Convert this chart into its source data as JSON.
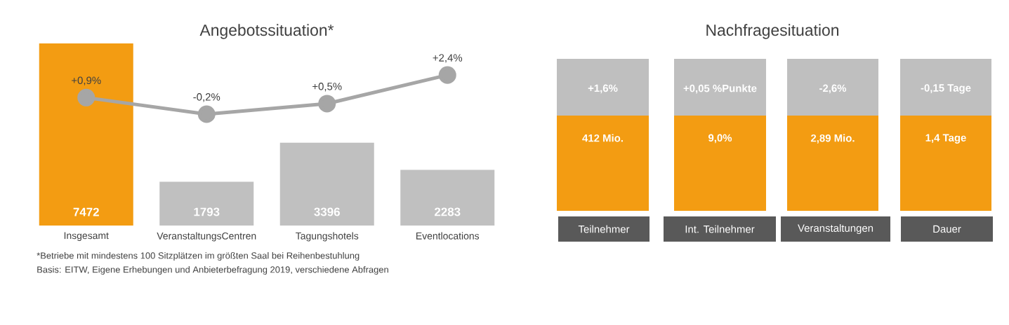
{
  "chart_data": [
    {
      "type": "bar",
      "title": "Angebotssituation*",
      "categories": [
        "Insgesamt",
        "VeranstaltungsCentren",
        "Tagungshotels",
        "Eventlocations"
      ],
      "series": [
        {
          "type": "bar",
          "colors": [
            "#f39c12",
            "#c0c0c0",
            "#c0c0c0",
            "#c0c0c0"
          ],
          "values": [
            7472,
            1793,
            3396,
            2283
          ],
          "value_labels": [
            "7472",
            "1793",
            "3396",
            "2283"
          ]
        },
        {
          "type": "line",
          "axis": "y2",
          "color": "#a6a6a6",
          "marker": "circle",
          "values": [
            0.9,
            -0.2,
            0.5,
            2.4
          ],
          "value_labels": [
            "+0,9%",
            "-0,2%",
            "+0,5%",
            "+2,4%"
          ]
        }
      ],
      "y2lim": [
        -7.6,
        4.5
      ],
      "annotations": [
        "*Betriebe mit mindestens 100 Sitzplätzen im größten Saal bei Reihenbestuhlung",
        "Basis: EITW, Eigene Erhebungen und Anbieterbefragung 2019, verschiedene Abfragen"
      ]
    },
    {
      "type": "other",
      "title": "Nachfragesituation",
      "categories": [
        "Teilnehmer",
        "Int. Teilnehmer",
        "Veranstaltungen",
        "Dauer"
      ],
      "annotations": [
        "+1,6%",
        "+0,05 %Punkte",
        "-2,6%",
        "-0,15 Tage",
        "412 Mio.",
        "9,0%",
        "2,89 Mio.",
        "1,4 Tage"
      ]
    }
  ]
}
